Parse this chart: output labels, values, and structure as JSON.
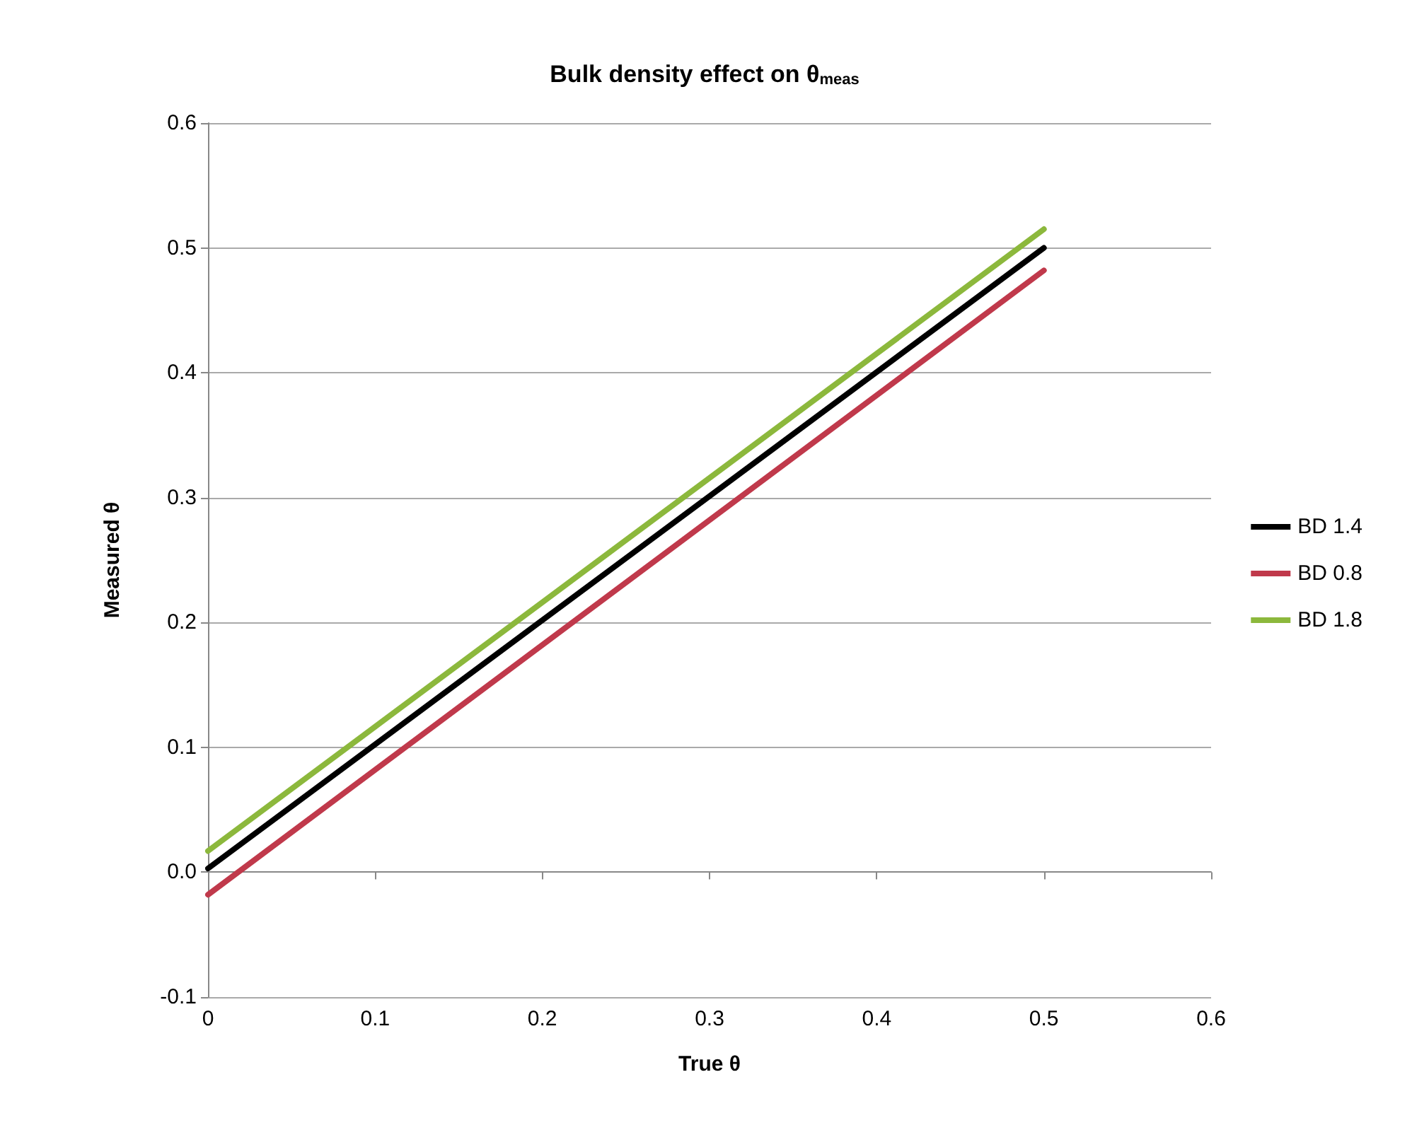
{
  "chart_data": {
    "type": "line",
    "title": "Bulk density effect on θ$_{meas}$",
    "xlabel": "True θ",
    "ylabel": "Measured θ",
    "x": [
      0,
      0.5
    ],
    "series": [
      {
        "name": "BD 1.4",
        "color": "#000000",
        "values": [
          0.003,
          0.5
        ]
      },
      {
        "name": "BD 0.8",
        "color": "#c0394b",
        "values": [
          -0.018,
          0.482
        ]
      },
      {
        "name": "BD 1.8",
        "color": "#8cb83c",
        "values": [
          0.017,
          0.515
        ]
      }
    ],
    "xlim": [
      0,
      0.6
    ],
    "xticks": [
      0,
      0.1,
      0.2,
      0.3,
      0.4,
      0.5,
      0.6
    ],
    "ylim": [
      -0.1,
      0.6
    ],
    "yticks": [
      -0.1,
      {
        "value": 0,
        "label": "0.0"
      },
      0.1,
      0.2,
      0.3,
      0.4,
      0.5,
      0.6
    ],
    "grid": "y",
    "legend": "right",
    "marker": "none",
    "line_style": "solid"
  }
}
